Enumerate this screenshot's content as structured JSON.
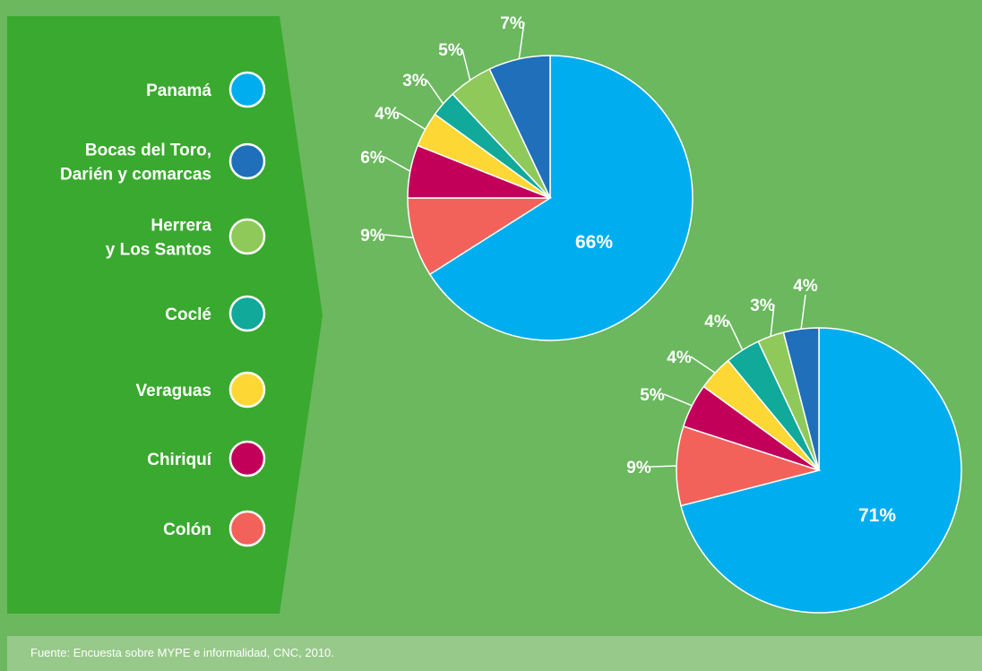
{
  "chart_data": {
    "type": "pie",
    "legend": [
      {
        "label_lines": [
          "Panamá"
        ],
        "color": "#00aeef"
      },
      {
        "label_lines": [
          "Bocas del Toro,",
          "Darién y comarcas"
        ],
        "color": "#1f6fbb"
      },
      {
        "label_lines": [
          "Herrera",
          "y Los Santos"
        ],
        "color": "#8fc95a"
      },
      {
        "label_lines": [
          "Coclé"
        ],
        "color": "#10a99a"
      },
      {
        "label_lines": [
          "Veraguas"
        ],
        "color": "#fdd835"
      },
      {
        "label_lines": [
          "Chiriquí"
        ],
        "color": "#c2005a"
      },
      {
        "label_lines": [
          "Colón"
        ],
        "color": "#f2625a"
      }
    ],
    "pies": [
      {
        "slices": [
          {
            "category": "Panamá",
            "value": 66,
            "label": "66%"
          },
          {
            "category": "Colón",
            "value": 9,
            "label": "9%"
          },
          {
            "category": "Chiriquí",
            "value": 6,
            "label": "6%"
          },
          {
            "category": "Veraguas",
            "value": 4,
            "label": "4%"
          },
          {
            "category": "Coclé",
            "value": 3,
            "label": "3%"
          },
          {
            "category": "Herrera y Los Santos",
            "value": 5,
            "label": "5%"
          },
          {
            "category": "Bocas del Toro, Darién y comarcas",
            "value": 7,
            "label": "7%"
          }
        ]
      },
      {
        "slices": [
          {
            "category": "Panamá",
            "value": 71,
            "label": "71%"
          },
          {
            "category": "Colón",
            "value": 9,
            "label": "9%"
          },
          {
            "category": "Chiriquí",
            "value": 5,
            "label": "5%"
          },
          {
            "category": "Veraguas",
            "value": 4,
            "label": "4%"
          },
          {
            "category": "Coclé",
            "value": 4,
            "label": "4%"
          },
          {
            "category": "Herrera y Los Santos",
            "value": 3,
            "label": "3%"
          },
          {
            "category": "Bocas del Toro, Darién y comarcas",
            "value": 4,
            "label": "4%"
          }
        ]
      }
    ]
  },
  "footer": {
    "source": "Fuente: Encuesta sobre MYPE e informalidad, CNC, 2010."
  }
}
